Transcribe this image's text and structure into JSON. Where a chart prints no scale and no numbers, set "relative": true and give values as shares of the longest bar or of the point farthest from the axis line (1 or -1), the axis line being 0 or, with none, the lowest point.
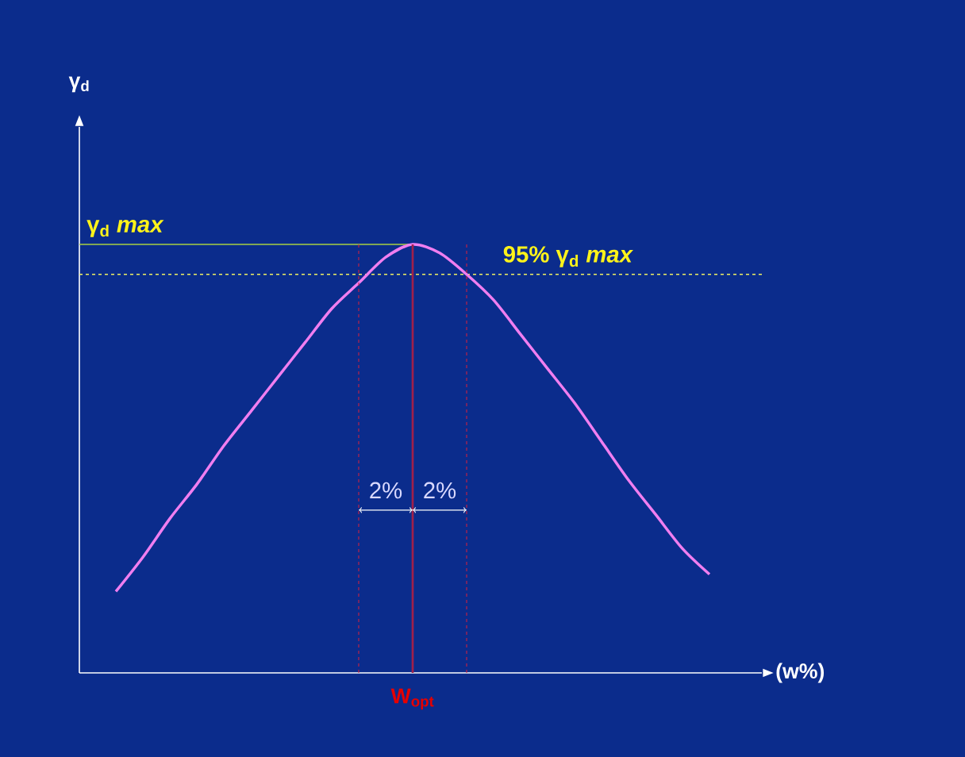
{
  "chart_data": {
    "type": "line",
    "relative": true,
    "categories": [
      null,
      null,
      null,
      null,
      null,
      null,
      null,
      null,
      null,
      null,
      null,
      null,
      null,
      null,
      null,
      null,
      null,
      null,
      null,
      null,
      null,
      null,
      null
    ],
    "series": [
      {
        "color": "#f07ef0",
        "values": [
          0.19,
          0.27,
          0.36,
          0.44,
          0.53,
          0.61,
          0.69,
          0.77,
          0.85,
          0.91,
          0.97,
          1,
          0.98,
          0.93,
          0.87,
          0.79,
          0.71,
          0.63,
          0.54,
          0.45,
          0.37,
          0.29,
          0.23
        ]
      }
    ],
    "xlabel": "(w%)",
    "ref_lines": [
      {
        "axis": "y",
        "value": 1,
        "label": "γ$_{d}$ *max*",
        "color": "#a8d040",
        "line_style": "solid"
      },
      {
        "axis": "y",
        "value": 0.93,
        "label": "95% γ$_{d}$ *max*",
        "color": "#f0f060",
        "line_style": "dashed"
      }
    ],
    "annotations": [
      "2%",
      "2%",
      "W$_{opt}$",
      "γ$_{d}$"
    ]
  }
}
